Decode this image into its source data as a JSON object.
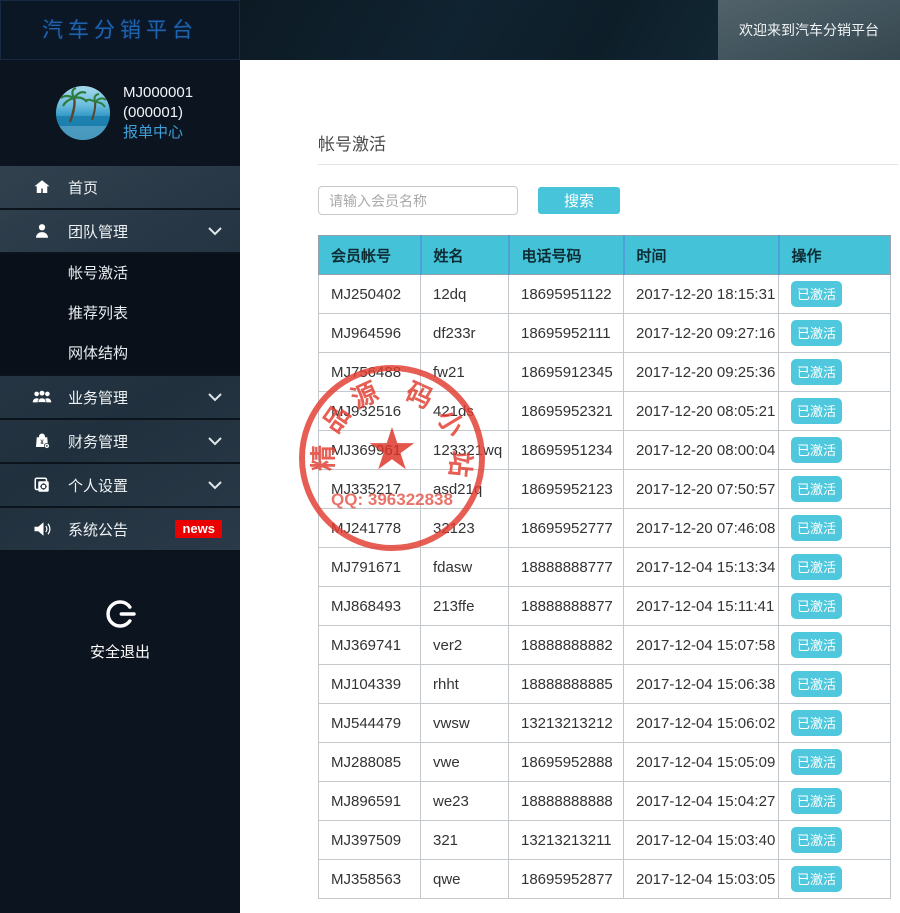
{
  "brand": {
    "logo": "汽车分销平台",
    "welcome": "欢迎来到汽车分销平台"
  },
  "user": {
    "id": "MJ000001",
    "sub_id": "(000001)",
    "role": "报单中心"
  },
  "sidebar": {
    "items": [
      {
        "label": "首页",
        "icon": "home-icon"
      },
      {
        "label": "团队管理",
        "icon": "user-icon",
        "expanded": true,
        "children": [
          "帐号激活",
          "推荐列表",
          "网体结构"
        ]
      },
      {
        "label": "业务管理",
        "icon": "users-icon"
      },
      {
        "label": "财务管理",
        "icon": "finance-icon"
      },
      {
        "label": "个人设置",
        "icon": "settings-icon"
      },
      {
        "label": "系统公告",
        "icon": "announcement-icon",
        "badge": "news"
      }
    ],
    "logout_label": "安全退出"
  },
  "main": {
    "title": "帐号激活",
    "search": {
      "placeholder": "请输入会员名称",
      "button_label": "搜索"
    },
    "table": {
      "headers": [
        "会员帐号",
        "姓名",
        "电话号码",
        "时间",
        "操作"
      ],
      "status_label": "已激活",
      "rows": [
        [
          "MJ250402",
          "12dq",
          "18695951122",
          "2017-12-20 18:15:31"
        ],
        [
          "MJ964596",
          "df233r",
          "18695952111",
          "2017-12-20 09:27:16"
        ],
        [
          "MJ756488",
          "fw21",
          "18695912345",
          "2017-12-20 09:25:36"
        ],
        [
          "MJ932516",
          "421ds",
          "18695952321",
          "2017-12-20 08:05:21"
        ],
        [
          "MJ369961",
          "123321wq",
          "18695951234",
          "2017-12-20 08:00:04"
        ],
        [
          "MJ335217",
          "asd21q",
          "18695952123",
          "2017-12-20 07:50:57"
        ],
        [
          "MJ241778",
          "32123",
          "18695952777",
          "2017-12-20 07:46:08"
        ],
        [
          "MJ791671",
          "fdasw",
          "18888888777",
          "2017-12-04 15:13:34"
        ],
        [
          "MJ868493",
          "213ffe",
          "18888888877",
          "2017-12-04 15:11:41"
        ],
        [
          "MJ369741",
          "ver2",
          "18888888882",
          "2017-12-04 15:07:58"
        ],
        [
          "MJ104339",
          "rhht",
          "18888888885",
          "2017-12-04 15:06:38"
        ],
        [
          "MJ544479",
          "vwsw",
          "13213213212",
          "2017-12-04 15:06:02"
        ],
        [
          "MJ288085",
          "vwe",
          "18695952888",
          "2017-12-04 15:05:09"
        ],
        [
          "MJ896591",
          "we23",
          "18888888888",
          "2017-12-04 15:04:27"
        ],
        [
          "MJ397509",
          "321",
          "13213213211",
          "2017-12-04 15:03:40"
        ],
        [
          "MJ358563",
          "qwe",
          "18695952877",
          "2017-12-04 15:03:05"
        ]
      ]
    }
  },
  "watermark": {
    "arc_text": [
      "精",
      "品",
      "源",
      "码",
      "小",
      "站"
    ],
    "star": "★",
    "qq": "QQ: 396322838"
  },
  "colors": {
    "accent_cyan": "#44c3d8",
    "badge_cyan": "#4fc8dd",
    "news_red": "#ea0000",
    "stamp_red": "#e23b30",
    "logo_blue": "#1f63ad",
    "link_blue": "#3f9fd9"
  }
}
